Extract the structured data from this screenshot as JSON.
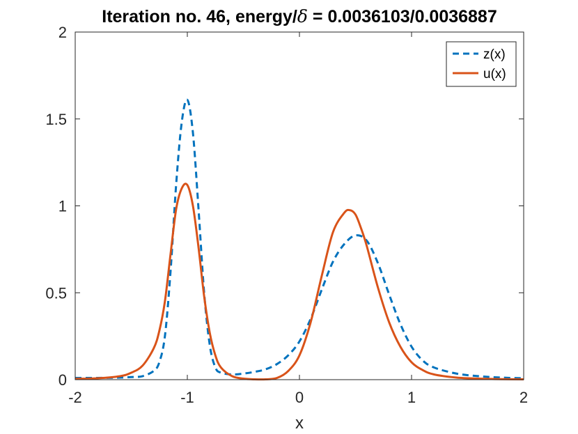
{
  "chart_data": {
    "type": "line",
    "title_prefix": "Iteration no. 46, energy/",
    "title_symbol": "δ",
    "title_suffix": " = 0.0036103/0.0036887",
    "xlabel": "x",
    "ylabel": "",
    "xlim": [
      -2,
      2
    ],
    "ylim": [
      0,
      2
    ],
    "xticks": [
      -2,
      -1,
      0,
      1,
      2
    ],
    "xtick_labels": [
      "-2",
      "-1",
      "0",
      "1",
      "2"
    ],
    "yticks": [
      0,
      0.5,
      1,
      1.5,
      2
    ],
    "ytick_labels": [
      "0",
      "0.5",
      "1",
      "1.5",
      "2"
    ],
    "grid": false,
    "legend_position": "top-right",
    "series": [
      {
        "name": "z(x)",
        "style": "dashed",
        "color": "#0072BD",
        "x": [
          -2.0,
          -1.8,
          -1.6,
          -1.5,
          -1.4,
          -1.3,
          -1.25,
          -1.2,
          -1.15,
          -1.1,
          -1.05,
          -1.0,
          -0.95,
          -0.9,
          -0.85,
          -0.8,
          -0.75,
          -0.7,
          -0.6,
          -0.5,
          -0.4,
          -0.3,
          -0.2,
          -0.1,
          0.0,
          0.1,
          0.2,
          0.3,
          0.4,
          0.5,
          0.6,
          0.7,
          0.8,
          0.9,
          1.0,
          1.1,
          1.2,
          1.4,
          1.6,
          1.8,
          2.0
        ],
        "y": [
          0.01,
          0.01,
          0.012,
          0.015,
          0.02,
          0.05,
          0.1,
          0.25,
          0.62,
          1.12,
          1.48,
          1.61,
          1.42,
          0.98,
          0.5,
          0.2,
          0.07,
          0.04,
          0.03,
          0.035,
          0.045,
          0.06,
          0.09,
          0.14,
          0.22,
          0.35,
          0.52,
          0.68,
          0.78,
          0.83,
          0.8,
          0.67,
          0.49,
          0.32,
          0.19,
          0.11,
          0.07,
          0.035,
          0.02,
          0.012,
          0.008
        ]
      },
      {
        "name": "u(x)",
        "style": "solid",
        "color": "#D95319",
        "x": [
          -2.0,
          -1.8,
          -1.6,
          -1.5,
          -1.4,
          -1.3,
          -1.25,
          -1.2,
          -1.15,
          -1.1,
          -1.05,
          -1.0,
          -0.95,
          -0.9,
          -0.85,
          -0.8,
          -0.75,
          -0.7,
          -0.6,
          -0.5,
          -0.4,
          -0.3,
          -0.2,
          -0.1,
          0.0,
          0.1,
          0.2,
          0.3,
          0.4,
          0.45,
          0.5,
          0.55,
          0.6,
          0.7,
          0.8,
          0.9,
          1.0,
          1.1,
          1.2,
          1.4,
          1.6,
          1.8,
          2.0
        ],
        "y": [
          0.005,
          0.008,
          0.02,
          0.04,
          0.08,
          0.18,
          0.28,
          0.45,
          0.72,
          0.98,
          1.1,
          1.12,
          1.0,
          0.76,
          0.48,
          0.27,
          0.14,
          0.07,
          0.02,
          0.006,
          0.002,
          0.002,
          0.01,
          0.05,
          0.14,
          0.33,
          0.6,
          0.85,
          0.96,
          0.975,
          0.95,
          0.87,
          0.77,
          0.53,
          0.33,
          0.19,
          0.1,
          0.055,
          0.03,
          0.012,
          0.006,
          0.003,
          0.002
        ]
      }
    ]
  }
}
